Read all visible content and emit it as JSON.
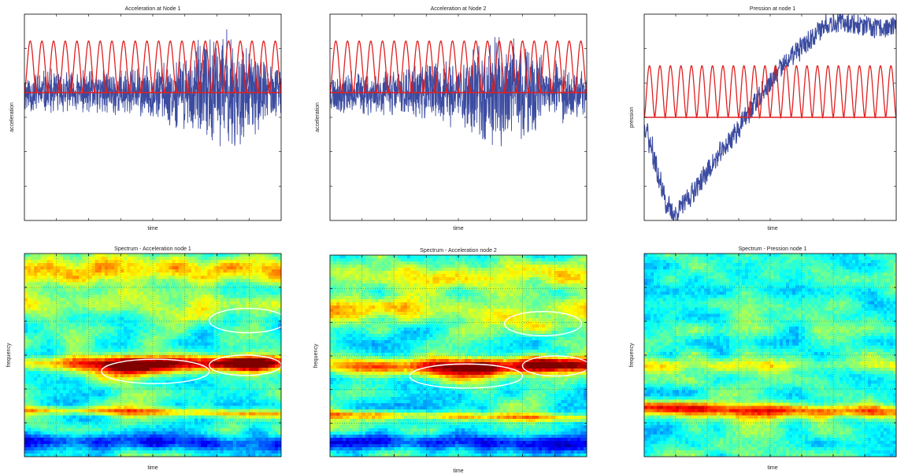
{
  "chart_data": [
    {
      "type": "line",
      "title": "Acceleration at Node 1",
      "xlabel": "time",
      "ylabel": "acceleration",
      "series": [
        {
          "color": "#3b4ba0",
          "kind": "noise",
          "baseline": 0.62,
          "seed": 11,
          "envelope": [
            [
              0,
              0.11
            ],
            [
              0.1,
              0.12
            ],
            [
              0.2,
              0.11
            ],
            [
              0.3,
              0.12
            ],
            [
              0.4,
              0.13
            ],
            [
              0.5,
              0.14
            ],
            [
              0.6,
              0.18
            ],
            [
              0.7,
              0.28
            ],
            [
              0.78,
              0.34
            ],
            [
              0.86,
              0.26
            ],
            [
              0.95,
              0.16
            ],
            [
              1,
              0.13
            ]
          ]
        },
        {
          "color": "#e02020",
          "kind": "pulses",
          "count": 22,
          "baseline": 0.62,
          "height": 0.25
        }
      ]
    },
    {
      "type": "line",
      "title": "Acceleration at Node 2",
      "xlabel": "time",
      "ylabel": "acceleration",
      "series": [
        {
          "color": "#3b4ba0",
          "kind": "noise",
          "baseline": 0.62,
          "seed": 23,
          "envelope": [
            [
              0,
              0.1
            ],
            [
              0.1,
              0.11
            ],
            [
              0.2,
              0.12
            ],
            [
              0.3,
              0.13
            ],
            [
              0.4,
              0.16
            ],
            [
              0.5,
              0.2
            ],
            [
              0.6,
              0.26
            ],
            [
              0.67,
              0.32
            ],
            [
              0.75,
              0.26
            ],
            [
              0.85,
              0.18
            ],
            [
              0.95,
              0.13
            ],
            [
              1,
              0.12
            ]
          ]
        },
        {
          "color": "#e02020",
          "kind": "pulses",
          "count": 22,
          "baseline": 0.62,
          "height": 0.25
        }
      ]
    },
    {
      "type": "line",
      "title": "Pression at node 1",
      "xlabel": "time",
      "ylabel": "pression",
      "series": [
        {
          "color": "#3b4ba0",
          "kind": "band",
          "width": 0.1,
          "seed": 37,
          "path": [
            [
              0,
              0.45
            ],
            [
              0.04,
              0.25
            ],
            [
              0.08,
              0.08
            ],
            [
              0.11,
              0.02
            ],
            [
              0.15,
              0.08
            ],
            [
              0.25,
              0.25
            ],
            [
              0.35,
              0.42
            ],
            [
              0.45,
              0.6
            ],
            [
              0.55,
              0.76
            ],
            [
              0.65,
              0.88
            ],
            [
              0.72,
              0.96
            ],
            [
              0.8,
              0.96
            ],
            [
              0.9,
              0.93
            ],
            [
              1,
              0.94
            ]
          ]
        },
        {
          "color": "#e02020",
          "kind": "pulses",
          "count": 24,
          "baseline": 0.5,
          "height": 0.25
        }
      ]
    },
    {
      "type": "heatmap",
      "title": "Spectrum - Acceleration node 1",
      "xlabel": "time",
      "ylabel": "frequency",
      "colormap": "jet",
      "seed": 5,
      "bands": [
        [
          0.08,
          0.07,
          0.25
        ],
        [
          0.25,
          0.06,
          0.18
        ],
        [
          0.54,
          0.035,
          0.3
        ],
        [
          0.78,
          0.02,
          0.3
        ],
        [
          0.93,
          0.04,
          -0.25
        ]
      ],
      "hotspots": [
        [
          0.5,
          0.55,
          0.2,
          0.05,
          0.35
        ],
        [
          0.86,
          0.54,
          0.15,
          0.04,
          0.45
        ],
        [
          0.4,
          0.57,
          0.15,
          0.05,
          0.25
        ]
      ],
      "ellipses": [
        [
          0.51,
          0.58,
          0.21,
          0.06
        ],
        [
          0.86,
          0.55,
          0.14,
          0.05
        ],
        [
          0.87,
          0.33,
          0.15,
          0.06
        ]
      ]
    },
    {
      "type": "heatmap",
      "title": "Spectrum - Acceleration node 2",
      "xlabel": "time",
      "ylabel": "frequency",
      "colormap": "jet",
      "seed": 9,
      "bands": [
        [
          0.1,
          0.07,
          0.2
        ],
        [
          0.27,
          0.06,
          0.18
        ],
        [
          0.55,
          0.04,
          0.3
        ],
        [
          0.8,
          0.02,
          0.28
        ],
        [
          0.93,
          0.04,
          -0.25
        ]
      ],
      "hotspots": [
        [
          0.52,
          0.57,
          0.2,
          0.05,
          0.35
        ],
        [
          0.87,
          0.54,
          0.14,
          0.04,
          0.45
        ],
        [
          0.82,
          0.35,
          0.12,
          0.04,
          0.2
        ]
      ],
      "ellipses": [
        [
          0.53,
          0.6,
          0.22,
          0.06
        ],
        [
          0.88,
          0.55,
          0.13,
          0.05
        ],
        [
          0.83,
          0.34,
          0.15,
          0.06
        ]
      ]
    },
    {
      "type": "heatmap",
      "title": "Spectrum - Pression node 1",
      "xlabel": "time",
      "ylabel": "frequency",
      "colormap": "jet",
      "seed": 17,
      "bands": [
        [
          0.55,
          0.03,
          0.15
        ],
        [
          0.77,
          0.03,
          0.35
        ]
      ],
      "hotspots": [
        [
          0.25,
          0.8,
          0.25,
          0.04,
          0.15
        ],
        [
          0.55,
          0.8,
          0.2,
          0.04,
          0.1
        ]
      ],
      "ellipses": []
    }
  ]
}
